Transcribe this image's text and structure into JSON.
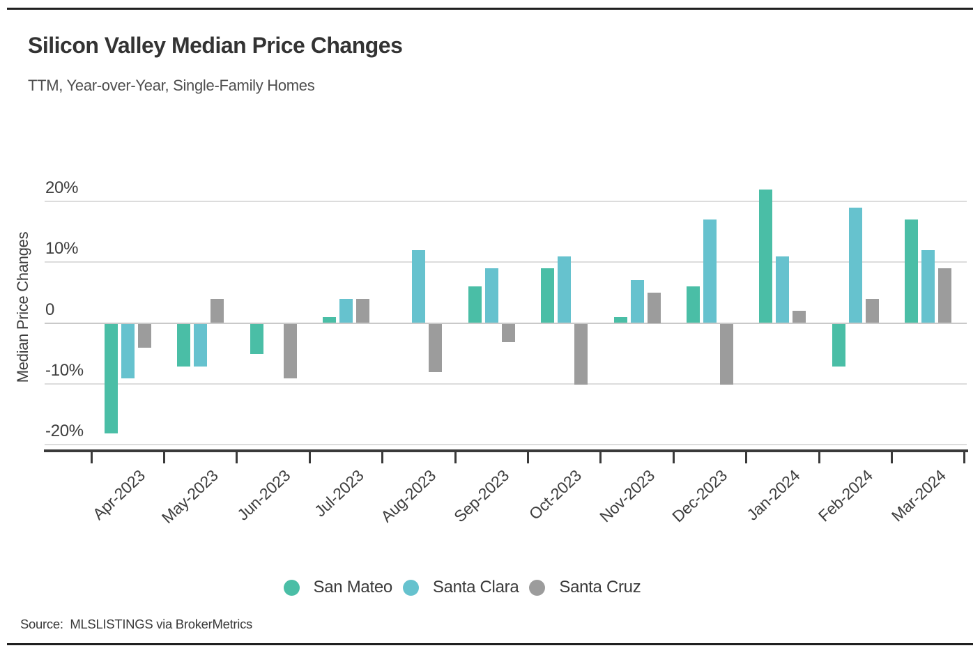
{
  "header": {
    "title": "Silicon Valley Median Price Changes",
    "subtitle": "TTM, Year-over-Year, Single-Family Homes"
  },
  "chart_data": {
    "type": "bar",
    "title": "Silicon Valley Median Price Changes",
    "subtitle": "TTM, Year-over-Year, Single-Family Homes",
    "xlabel": "",
    "ylabel": "Median Price Changes",
    "unit": "percent",
    "grid": true,
    "legend_position": "bottom",
    "ylim": [
      -22,
      24
    ],
    "yticks": [
      {
        "label": "20%",
        "value": 20
      },
      {
        "label": "10%",
        "value": 10
      },
      {
        "label": "0",
        "value": 0
      },
      {
        "label": "-10%",
        "value": -10
      },
      {
        "label": "-20%",
        "value": -20
      }
    ],
    "categories": [
      "Apr-2023",
      "May-2023",
      "Jun-2023",
      "Jul-2023",
      "Aug-2023",
      "Sep-2023",
      "Oct-2023",
      "Nov-2023",
      "Dec-2023",
      "Jan-2024",
      "Feb-2024",
      "Mar-2024"
    ],
    "series": [
      {
        "name": "San Mateo",
        "color": "#4ABEA6",
        "values": [
          -18,
          -7,
          -5,
          1,
          0,
          6,
          9,
          1,
          6,
          22,
          -7,
          17
        ]
      },
      {
        "name": "Santa Clara",
        "color": "#66C2CE",
        "values": [
          -9,
          -7,
          0,
          4,
          12,
          9,
          11,
          7,
          17,
          11,
          19,
          12
        ]
      },
      {
        "name": "Santa Cruz",
        "color": "#9C9C9C",
        "values": [
          -4,
          4,
          -9,
          4,
          -8,
          -3,
          -10,
          5,
          -10,
          2,
          4,
          9
        ]
      }
    ]
  },
  "footer": {
    "source": "Source:  MLSLISTINGS via BrokerMetrics"
  }
}
